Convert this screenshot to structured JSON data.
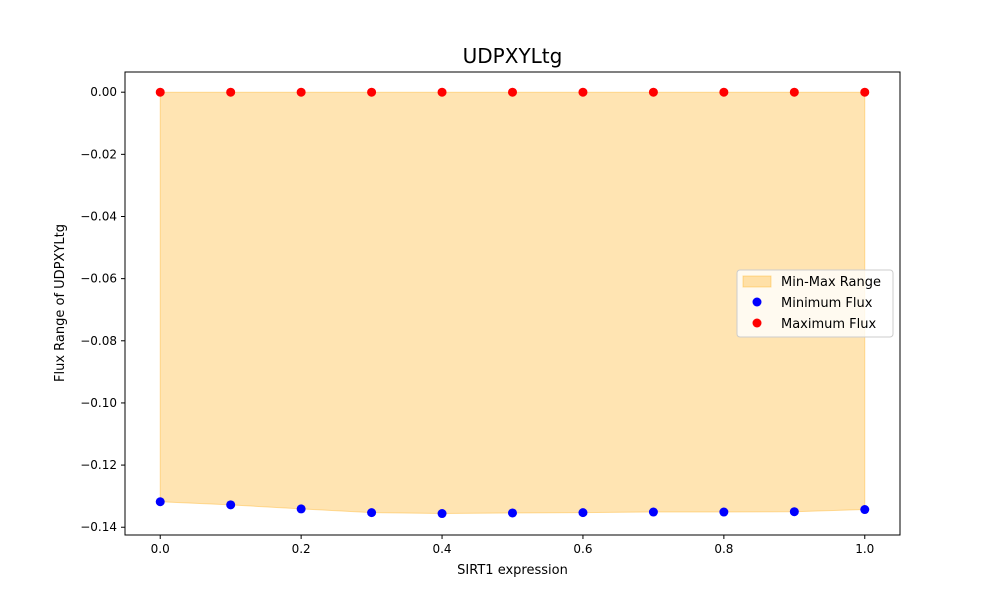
{
  "chart_data": {
    "type": "scatter",
    "title": "UDPXYLtg",
    "xlabel": "SIRT1 expression",
    "ylabel": "Flux Range of UDPXYLtg",
    "xlim": [
      -0.05,
      1.05
    ],
    "ylim": [
      -0.1425,
      0.0065
    ],
    "x_ticks": [
      0.0,
      0.2,
      0.4,
      0.6,
      0.8,
      1.0
    ],
    "x_tick_labels": [
      "0.0",
      "0.2",
      "0.4",
      "0.6",
      "0.8",
      "1.0"
    ],
    "y_ticks": [
      0.0,
      -0.02,
      -0.04,
      -0.06,
      -0.08,
      -0.1,
      -0.12,
      -0.14
    ],
    "y_tick_labels": [
      "0.00",
      "−0.02",
      "−0.04",
      "−0.06",
      "−0.08",
      "−0.10",
      "−0.12",
      "−0.14"
    ],
    "x": [
      0.0,
      0.1,
      0.2,
      0.3,
      0.4,
      0.5,
      0.6,
      0.7,
      0.8,
      0.9,
      1.0
    ],
    "series": [
      {
        "name": "Minimum Flux",
        "color": "#0000ff",
        "values": [
          -0.1318,
          -0.1328,
          -0.1341,
          -0.1353,
          -0.1356,
          -0.1354,
          -0.1353,
          -0.1351,
          -0.1351,
          -0.135,
          -0.1343
        ]
      },
      {
        "name": "Maximum Flux",
        "color": "#ff0000",
        "values": [
          0.0,
          0.0,
          0.0,
          0.0,
          0.0,
          0.0,
          0.0,
          0.0,
          0.0,
          0.0,
          0.0
        ]
      }
    ],
    "fill": {
      "name": "Min-Max Range",
      "color": "#ffa500",
      "opacity": 0.3
    },
    "legend": {
      "position": "center-right",
      "entries": [
        "Min-Max Range",
        "Minimum Flux",
        "Maximum Flux"
      ]
    },
    "grid": false
  }
}
